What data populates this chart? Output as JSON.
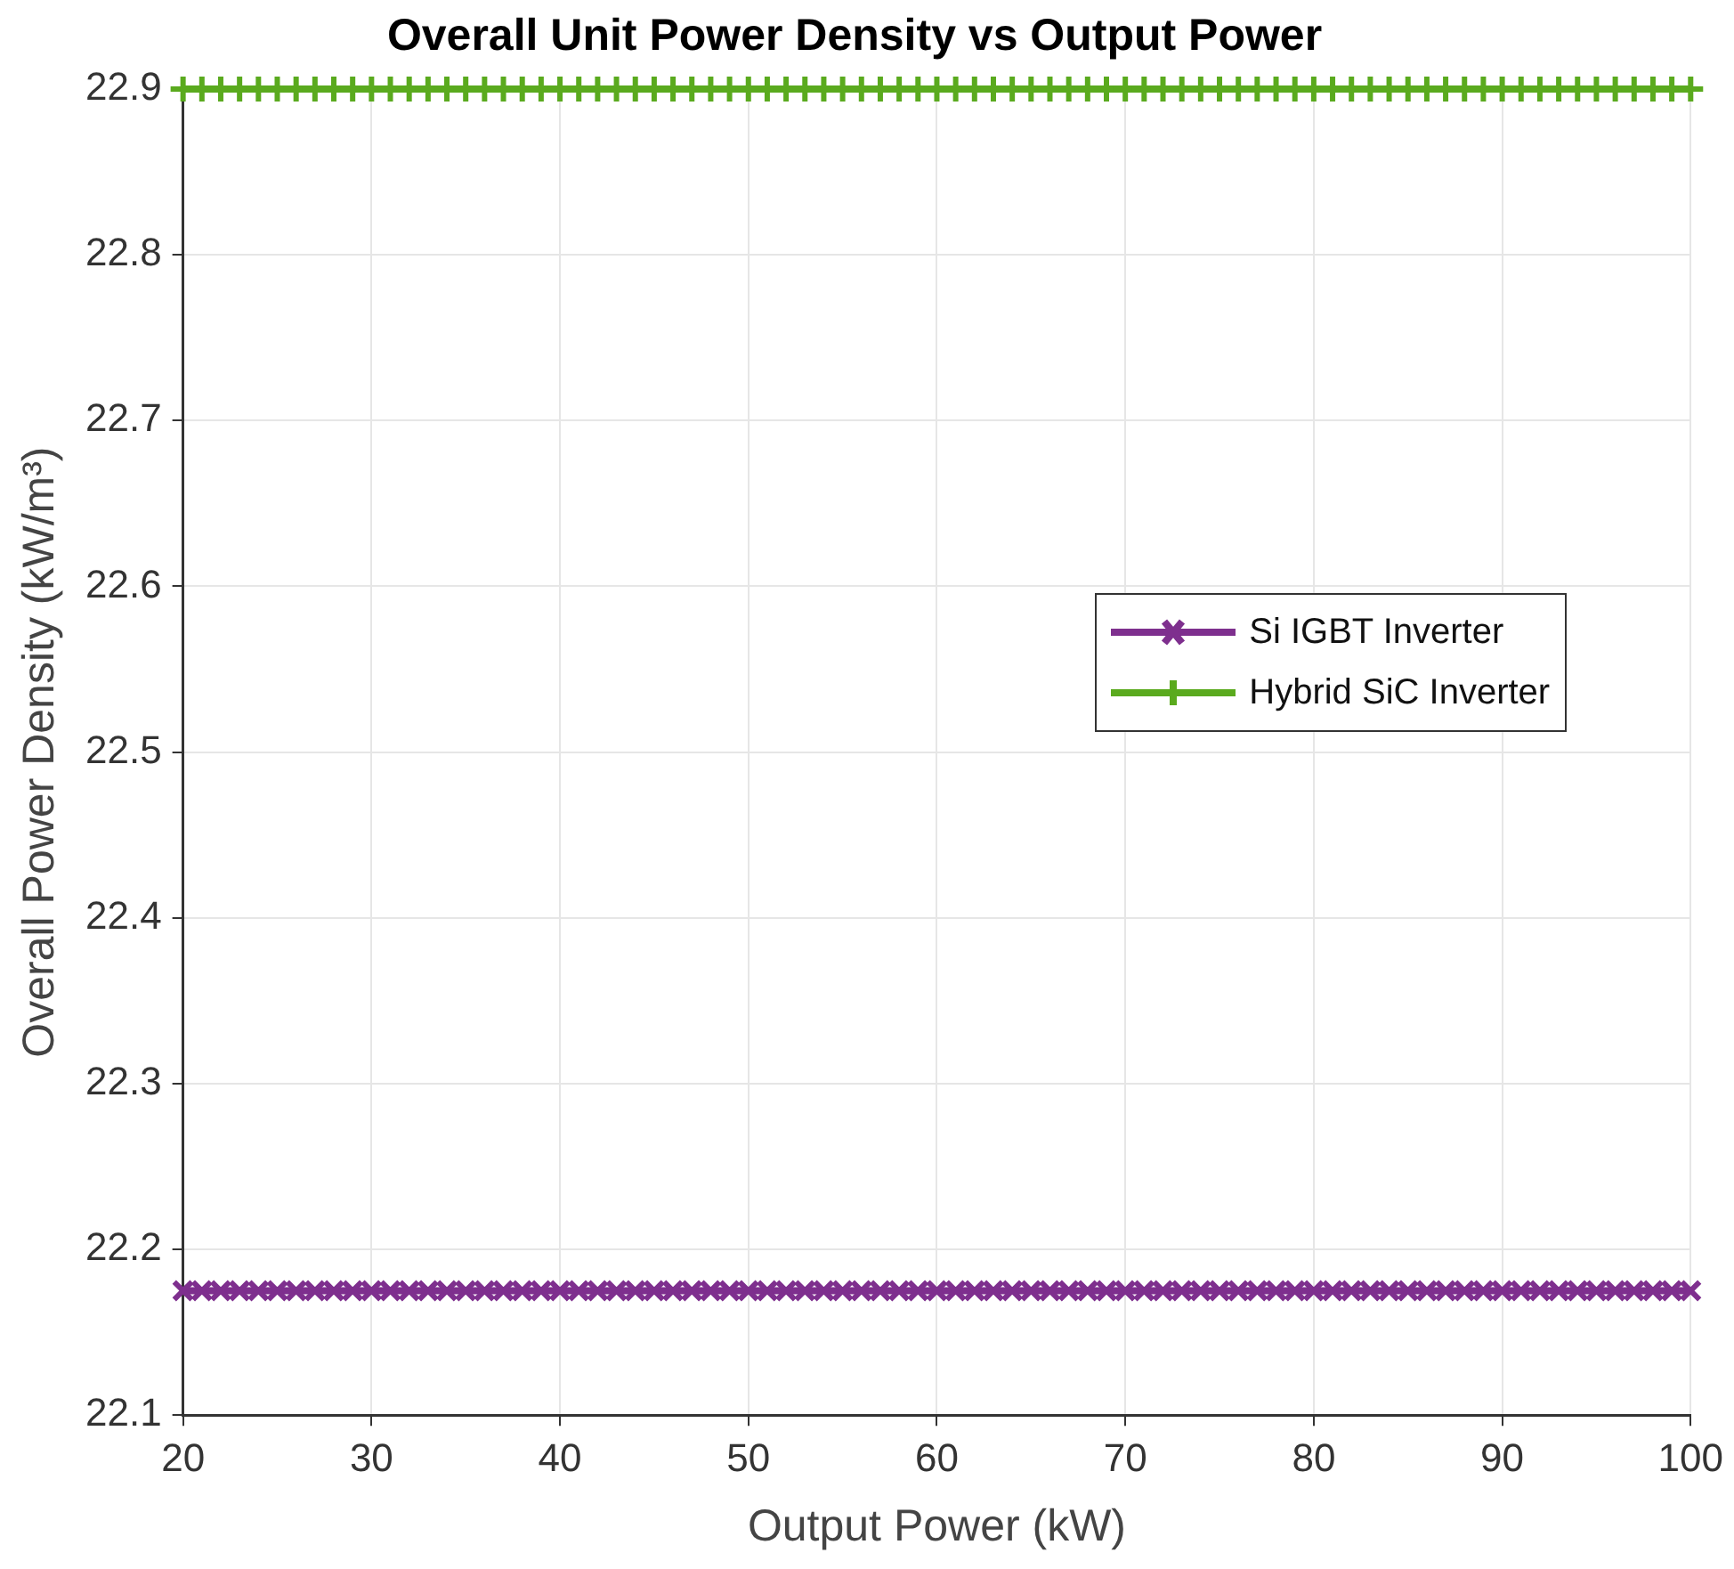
{
  "chart_data": {
    "type": "line",
    "title": "Overall Unit Power Density vs Output Power",
    "xlabel": "Output Power (kW)",
    "ylabel": "Overall Power Density (kW/m³)",
    "x": [
      20,
      21,
      22,
      23,
      24,
      25,
      26,
      27,
      28,
      29,
      30,
      31,
      32,
      33,
      34,
      35,
      36,
      37,
      38,
      39,
      40,
      41,
      42,
      43,
      44,
      45,
      46,
      47,
      48,
      49,
      50,
      51,
      52,
      53,
      54,
      55,
      56,
      57,
      58,
      59,
      60,
      61,
      62,
      63,
      64,
      65,
      66,
      67,
      68,
      69,
      70,
      71,
      72,
      73,
      74,
      75,
      76,
      77,
      78,
      79,
      80,
      81,
      82,
      83,
      84,
      85,
      86,
      87,
      88,
      89,
      90,
      91,
      92,
      93,
      94,
      95,
      96,
      97,
      98,
      99,
      100
    ],
    "series": [
      {
        "name": "Si IGBT Inverter",
        "color": "#7e2f8e",
        "marker": "x",
        "values": [
          22.175,
          22.175,
          22.175,
          22.175,
          22.175,
          22.175,
          22.175,
          22.175,
          22.175,
          22.175,
          22.175,
          22.175,
          22.175,
          22.175,
          22.175,
          22.175,
          22.175,
          22.175,
          22.175,
          22.175,
          22.175,
          22.175,
          22.175,
          22.175,
          22.175,
          22.175,
          22.175,
          22.175,
          22.175,
          22.175,
          22.175,
          22.175,
          22.175,
          22.175,
          22.175,
          22.175,
          22.175,
          22.175,
          22.175,
          22.175,
          22.175,
          22.175,
          22.175,
          22.175,
          22.175,
          22.175,
          22.175,
          22.175,
          22.175,
          22.175,
          22.175,
          22.175,
          22.175,
          22.175,
          22.175,
          22.175,
          22.175,
          22.175,
          22.175,
          22.175,
          22.175,
          22.175,
          22.175,
          22.175,
          22.175,
          22.175,
          22.175,
          22.175,
          22.175,
          22.175,
          22.175,
          22.175,
          22.175,
          22.175,
          22.175,
          22.175,
          22.175,
          22.175,
          22.175,
          22.175,
          22.175
        ]
      },
      {
        "name": "Hybrid SiC Inverter",
        "color": "#5aaa1e",
        "marker": "cross",
        "values": [
          22.9,
          22.9,
          22.9,
          22.9,
          22.9,
          22.9,
          22.9,
          22.9,
          22.9,
          22.9,
          22.9,
          22.9,
          22.9,
          22.9,
          22.9,
          22.9,
          22.9,
          22.9,
          22.9,
          22.9,
          22.9,
          22.9,
          22.9,
          22.9,
          22.9,
          22.9,
          22.9,
          22.9,
          22.9,
          22.9,
          22.9,
          22.9,
          22.9,
          22.9,
          22.9,
          22.9,
          22.9,
          22.9,
          22.9,
          22.9,
          22.9,
          22.9,
          22.9,
          22.9,
          22.9,
          22.9,
          22.9,
          22.9,
          22.9,
          22.9,
          22.9,
          22.9,
          22.9,
          22.9,
          22.9,
          22.9,
          22.9,
          22.9,
          22.9,
          22.9,
          22.9,
          22.9,
          22.9,
          22.9,
          22.9,
          22.9,
          22.9,
          22.9,
          22.9,
          22.9,
          22.9,
          22.9,
          22.9,
          22.9,
          22.9,
          22.9,
          22.9,
          22.9,
          22.9,
          22.9,
          22.9
        ]
      }
    ],
    "xlim": [
      20,
      100
    ],
    "xticks": [
      20,
      30,
      40,
      50,
      60,
      70,
      80,
      90,
      100
    ],
    "ylim": [
      22.1,
      22.9
    ],
    "yticks": [
      22.1,
      22.2,
      22.3,
      22.4,
      22.5,
      22.6,
      22.7,
      22.8,
      22.9
    ],
    "grid": true,
    "legend": "right",
    "line_style": "solid"
  }
}
